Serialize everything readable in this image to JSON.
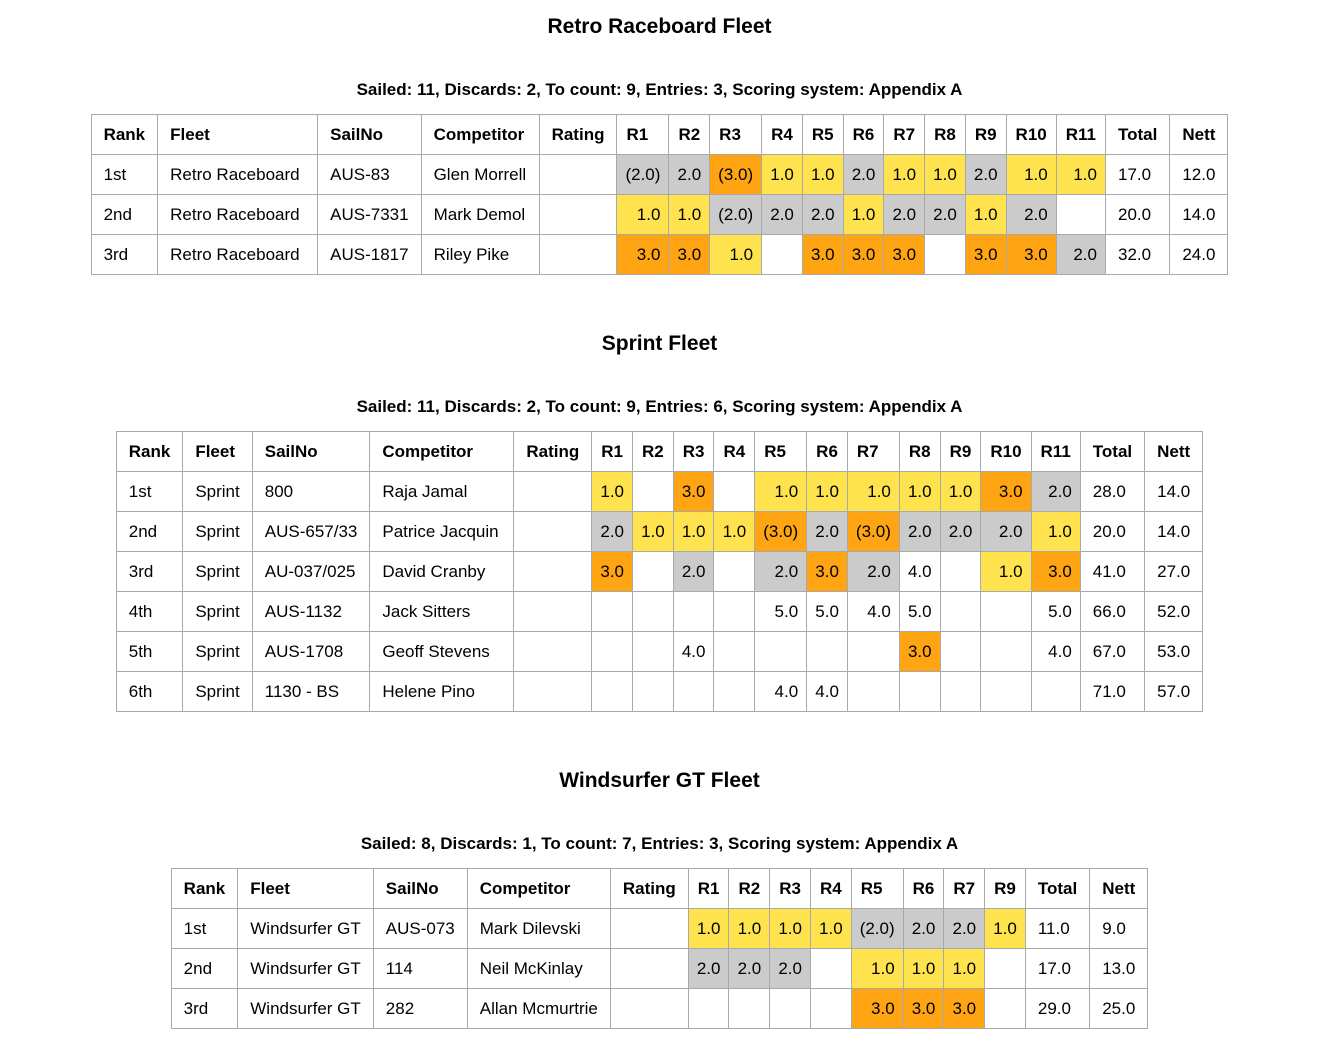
{
  "colors": {
    "first_place": "#FFE34E",
    "second_place": "#CBCBCB",
    "third_place": "#FFA412",
    "border": "#A9A9A9",
    "text": "#000000",
    "background": "#FFFFFF"
  },
  "fleets": [
    {
      "title": "Retro Raceboard Fleet",
      "summary": "Sailed: 11, Discards: 2, To count: 9, Entries: 3, Scoring system: Appendix A",
      "headers": {
        "rank": "Rank",
        "fleet": "Fleet",
        "sailno": "SailNo",
        "competitor": "Competitor",
        "rating": "Rating",
        "races": [
          "R1",
          "R2",
          "R3",
          "R4",
          "R5",
          "R6",
          "R7",
          "R8",
          "R9",
          "R10",
          "R11"
        ],
        "total": "Total",
        "nett": "Nett"
      },
      "rows": [
        {
          "rank": "1st",
          "fleet": "Retro Raceboard",
          "sailno": "AUS-83",
          "competitor": "Glen Morrell",
          "rating": "",
          "races": [
            {
              "score": "(2.0)",
              "highlight": "second"
            },
            {
              "score": "2.0",
              "highlight": "second"
            },
            {
              "score": "(3.0)",
              "highlight": "third"
            },
            {
              "score": "1.0",
              "highlight": "first"
            },
            {
              "score": "1.0",
              "highlight": "first"
            },
            {
              "score": "2.0",
              "highlight": "second"
            },
            {
              "score": "1.0",
              "highlight": "first"
            },
            {
              "score": "1.0",
              "highlight": "first"
            },
            {
              "score": "2.0",
              "highlight": "second"
            },
            {
              "score": "1.0",
              "highlight": "first"
            },
            {
              "score": "1.0",
              "highlight": "first"
            }
          ],
          "total": "17.0",
          "nett": "12.0"
        },
        {
          "rank": "2nd",
          "fleet": "Retro Raceboard",
          "sailno": "AUS-7331",
          "competitor": "Mark Demol",
          "rating": "",
          "races": [
            {
              "score": "1.0",
              "highlight": "first"
            },
            {
              "score": "1.0",
              "highlight": "first"
            },
            {
              "score": "(2.0)",
              "highlight": "second"
            },
            {
              "score": "2.0",
              "highlight": "second"
            },
            {
              "score": "2.0",
              "highlight": "second"
            },
            {
              "score": "1.0",
              "highlight": "first"
            },
            {
              "score": "2.0",
              "highlight": "second"
            },
            {
              "score": "2.0",
              "highlight": "second"
            },
            {
              "score": "1.0",
              "highlight": "first"
            },
            {
              "score": "2.0",
              "highlight": "second"
            },
            {
              "score": "",
              "highlight": "none"
            }
          ],
          "total": "20.0",
          "nett": "14.0"
        },
        {
          "rank": "3rd",
          "fleet": "Retro Raceboard",
          "sailno": "AUS-1817",
          "competitor": "Riley Pike",
          "rating": "",
          "races": [
            {
              "score": "3.0",
              "highlight": "third"
            },
            {
              "score": "3.0",
              "highlight": "third"
            },
            {
              "score": "1.0",
              "highlight": "first"
            },
            {
              "score": "",
              "highlight": "none"
            },
            {
              "score": "3.0",
              "highlight": "third"
            },
            {
              "score": "3.0",
              "highlight": "third"
            },
            {
              "score": "3.0",
              "highlight": "third"
            },
            {
              "score": "",
              "highlight": "none"
            },
            {
              "score": "3.0",
              "highlight": "third"
            },
            {
              "score": "3.0",
              "highlight": "third"
            },
            {
              "score": "2.0",
              "highlight": "second"
            }
          ],
          "total": "32.0",
          "nett": "24.0"
        }
      ]
    },
    {
      "title": "Sprint Fleet",
      "summary": "Sailed: 11, Discards: 2, To count: 9, Entries: 6, Scoring system: Appendix A",
      "headers": {
        "rank": "Rank",
        "fleet": "Fleet",
        "sailno": "SailNo",
        "competitor": "Competitor",
        "rating": "Rating",
        "races": [
          "R1",
          "R2",
          "R3",
          "R4",
          "R5",
          "R6",
          "R7",
          "R8",
          "R9",
          "R10",
          "R11"
        ],
        "total": "Total",
        "nett": "Nett"
      },
      "rows": [
        {
          "rank": "1st",
          "fleet": "Sprint",
          "sailno": "800",
          "competitor": "Raja Jamal",
          "rating": "",
          "races": [
            {
              "score": "1.0",
              "highlight": "first"
            },
            {
              "score": "",
              "highlight": "none"
            },
            {
              "score": "3.0",
              "highlight": "third"
            },
            {
              "score": "",
              "highlight": "none"
            },
            {
              "score": "1.0",
              "highlight": "first"
            },
            {
              "score": "1.0",
              "highlight": "first"
            },
            {
              "score": "1.0",
              "highlight": "first"
            },
            {
              "score": "1.0",
              "highlight": "first"
            },
            {
              "score": "1.0",
              "highlight": "first"
            },
            {
              "score": "3.0",
              "highlight": "third"
            },
            {
              "score": "2.0",
              "highlight": "second"
            }
          ],
          "total": "28.0",
          "nett": "14.0"
        },
        {
          "rank": "2nd",
          "fleet": "Sprint",
          "sailno": "AUS-657/33",
          "competitor": "Patrice Jacquin",
          "rating": "",
          "races": [
            {
              "score": "2.0",
              "highlight": "second"
            },
            {
              "score": "1.0",
              "highlight": "first"
            },
            {
              "score": "1.0",
              "highlight": "first"
            },
            {
              "score": "1.0",
              "highlight": "first"
            },
            {
              "score": "(3.0)",
              "highlight": "third"
            },
            {
              "score": "2.0",
              "highlight": "second"
            },
            {
              "score": "(3.0)",
              "highlight": "third"
            },
            {
              "score": "2.0",
              "highlight": "second"
            },
            {
              "score": "2.0",
              "highlight": "second"
            },
            {
              "score": "2.0",
              "highlight": "second"
            },
            {
              "score": "1.0",
              "highlight": "first"
            }
          ],
          "total": "20.0",
          "nett": "14.0"
        },
        {
          "rank": "3rd",
          "fleet": "Sprint",
          "sailno": "AU-037/025",
          "competitor": "David Cranby",
          "rating": "",
          "races": [
            {
              "score": "3.0",
              "highlight": "third"
            },
            {
              "score": "",
              "highlight": "none"
            },
            {
              "score": "2.0",
              "highlight": "second"
            },
            {
              "score": "",
              "highlight": "none"
            },
            {
              "score": "2.0",
              "highlight": "second"
            },
            {
              "score": "3.0",
              "highlight": "third"
            },
            {
              "score": "2.0",
              "highlight": "second"
            },
            {
              "score": "4.0",
              "highlight": "none"
            },
            {
              "score": "",
              "highlight": "none"
            },
            {
              "score": "1.0",
              "highlight": "first"
            },
            {
              "score": "3.0",
              "highlight": "third"
            }
          ],
          "total": "41.0",
          "nett": "27.0"
        },
        {
          "rank": "4th",
          "fleet": "Sprint",
          "sailno": "AUS-1132",
          "competitor": "Jack Sitters",
          "rating": "",
          "races": [
            {
              "score": "",
              "highlight": "none"
            },
            {
              "score": "",
              "highlight": "none"
            },
            {
              "score": "",
              "highlight": "none"
            },
            {
              "score": "",
              "highlight": "none"
            },
            {
              "score": "5.0",
              "highlight": "none"
            },
            {
              "score": "5.0",
              "highlight": "none"
            },
            {
              "score": "4.0",
              "highlight": "none"
            },
            {
              "score": "5.0",
              "highlight": "none"
            },
            {
              "score": "",
              "highlight": "none"
            },
            {
              "score": "",
              "highlight": "none"
            },
            {
              "score": "5.0",
              "highlight": "none"
            }
          ],
          "total": "66.0",
          "nett": "52.0"
        },
        {
          "rank": "5th",
          "fleet": "Sprint",
          "sailno": "AUS-1708",
          "competitor": "Geoff Stevens",
          "rating": "",
          "races": [
            {
              "score": "",
              "highlight": "none"
            },
            {
              "score": "",
              "highlight": "none"
            },
            {
              "score": "4.0",
              "highlight": "none"
            },
            {
              "score": "",
              "highlight": "none"
            },
            {
              "score": "",
              "highlight": "none"
            },
            {
              "score": "",
              "highlight": "none"
            },
            {
              "score": "",
              "highlight": "none"
            },
            {
              "score": "3.0",
              "highlight": "third"
            },
            {
              "score": "",
              "highlight": "none"
            },
            {
              "score": "",
              "highlight": "none"
            },
            {
              "score": "4.0",
              "highlight": "none"
            }
          ],
          "total": "67.0",
          "nett": "53.0"
        },
        {
          "rank": "6th",
          "fleet": "Sprint",
          "sailno": "1130 - BS",
          "competitor": "Helene Pino",
          "rating": "",
          "races": [
            {
              "score": "",
              "highlight": "none"
            },
            {
              "score": "",
              "highlight": "none"
            },
            {
              "score": "",
              "highlight": "none"
            },
            {
              "score": "",
              "highlight": "none"
            },
            {
              "score": "4.0",
              "highlight": "none"
            },
            {
              "score": "4.0",
              "highlight": "none"
            },
            {
              "score": "",
              "highlight": "none"
            },
            {
              "score": "",
              "highlight": "none"
            },
            {
              "score": "",
              "highlight": "none"
            },
            {
              "score": "",
              "highlight": "none"
            },
            {
              "score": "",
              "highlight": "none"
            }
          ],
          "total": "71.0",
          "nett": "57.0"
        }
      ]
    },
    {
      "title": "Windsurfer GT Fleet",
      "summary": "Sailed: 8, Discards: 1, To count: 7, Entries: 3, Scoring system: Appendix A",
      "headers": {
        "rank": "Rank",
        "fleet": "Fleet",
        "sailno": "SailNo",
        "competitor": "Competitor",
        "rating": "Rating",
        "races": [
          "R1",
          "R2",
          "R3",
          "R4",
          "R5",
          "R6",
          "R7",
          "R9"
        ],
        "total": "Total",
        "nett": "Nett"
      },
      "rows": [
        {
          "rank": "1st",
          "fleet": "Windsurfer GT",
          "sailno": "AUS-073",
          "competitor": "Mark Dilevski",
          "rating": "",
          "races": [
            {
              "score": "1.0",
              "highlight": "first"
            },
            {
              "score": "1.0",
              "highlight": "first"
            },
            {
              "score": "1.0",
              "highlight": "first"
            },
            {
              "score": "1.0",
              "highlight": "first"
            },
            {
              "score": "(2.0)",
              "highlight": "second"
            },
            {
              "score": "2.0",
              "highlight": "second"
            },
            {
              "score": "2.0",
              "highlight": "second"
            },
            {
              "score": "1.0",
              "highlight": "first"
            }
          ],
          "total": "11.0",
          "nett": "9.0"
        },
        {
          "rank": "2nd",
          "fleet": "Windsurfer GT",
          "sailno": "114",
          "competitor": "Neil McKinlay",
          "rating": "",
          "races": [
            {
              "score": "2.0",
              "highlight": "second"
            },
            {
              "score": "2.0",
              "highlight": "second"
            },
            {
              "score": "2.0",
              "highlight": "second"
            },
            {
              "score": "",
              "highlight": "none"
            },
            {
              "score": "1.0",
              "highlight": "first"
            },
            {
              "score": "1.0",
              "highlight": "first"
            },
            {
              "score": "1.0",
              "highlight": "first"
            },
            {
              "score": "",
              "highlight": "none"
            }
          ],
          "total": "17.0",
          "nett": "13.0"
        },
        {
          "rank": "3rd",
          "fleet": "Windsurfer GT",
          "sailno": "282",
          "competitor": "Allan Mcmurtrie",
          "rating": "",
          "races": [
            {
              "score": "",
              "highlight": "none"
            },
            {
              "score": "",
              "highlight": "none"
            },
            {
              "score": "",
              "highlight": "none"
            },
            {
              "score": "",
              "highlight": "none"
            },
            {
              "score": "3.0",
              "highlight": "third"
            },
            {
              "score": "3.0",
              "highlight": "third"
            },
            {
              "score": "3.0",
              "highlight": "third"
            },
            {
              "score": "",
              "highlight": "none"
            }
          ],
          "total": "29.0",
          "nett": "25.0"
        }
      ]
    }
  ]
}
